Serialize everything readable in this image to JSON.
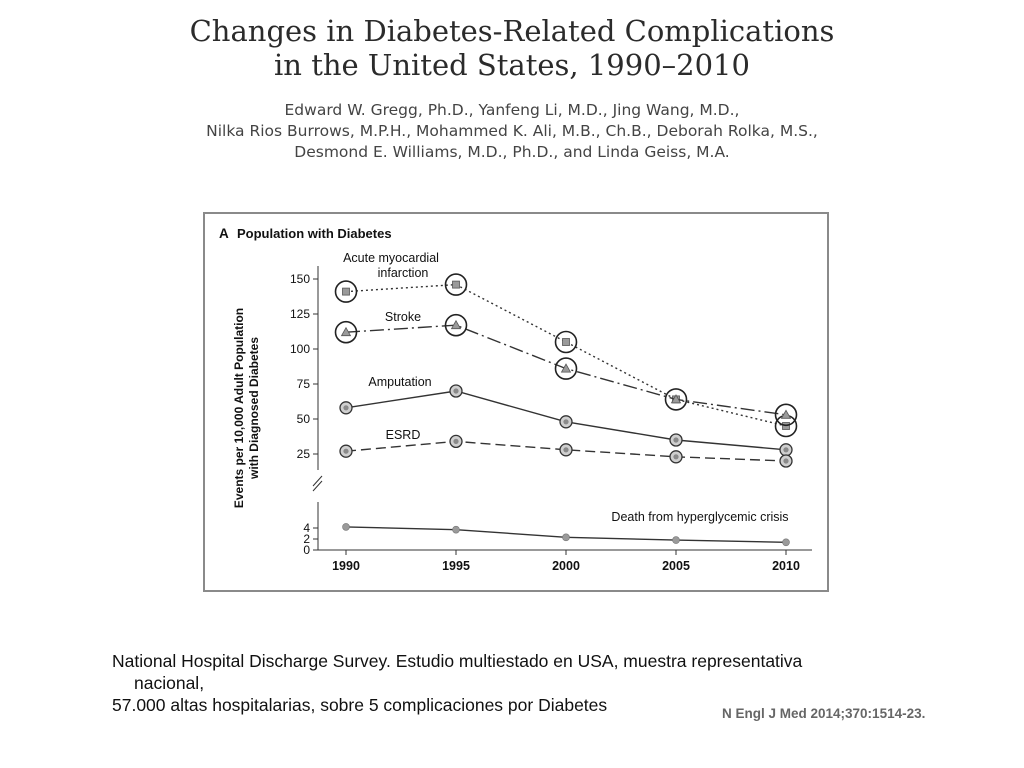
{
  "paper": {
    "title_lines": [
      "Changes in Diabetes-Related Complications",
      "in the United States, 1990–2010"
    ],
    "author_lines": [
      "Edward W. Gregg, Ph.D., Yanfeng Li, M.D., Jing Wang, M.D.,",
      "Nilka Rios Burrows, M.P.H., Mohammed K. Ali, M.B., Ch.B., Deborah Rolka, M.S.,",
      "Desmond E. Williams, M.D., Ph.D., and Linda Geiss, M.A."
    ]
  },
  "footer": {
    "line1": "National Hospital Discharge Survey. Estudio multiestado en USA, muestra representativa",
    "line2": "nacional,",
    "line3": "57.000 altas hospitalarias, sobre 5 complicaciones por Diabetes",
    "citation": "N Engl J Med 2014;370:1514-23."
  },
  "chart_data": {
    "type": "line",
    "panel_letter": "A",
    "title": "Population with Diabetes",
    "ylabel_lines": [
      "Events per 10,000 Adult Population",
      "with Diagnosed Diabetes"
    ],
    "x": [
      1990,
      1995,
      2000,
      2005,
      2010
    ],
    "y_upper_ticks": [
      25,
      50,
      75,
      100,
      125,
      150
    ],
    "y_lower_ticks": [
      0,
      2,
      4
    ],
    "axis_break": true,
    "series": [
      {
        "name": "Acute myocardial infarction",
        "label_lines": [
          "Acute myocardial",
          "infarction"
        ],
        "values": [
          141,
          146,
          105,
          64,
          45
        ],
        "dash": "2,3",
        "marker": "square",
        "circled": [
          true,
          true,
          true,
          true,
          true
        ],
        "panel": "upper"
      },
      {
        "name": "Stroke",
        "label_lines": [
          "Stroke"
        ],
        "values": [
          112,
          117,
          86,
          64,
          53
        ],
        "dash": "14,4,2,4",
        "marker": "triangle",
        "circled": [
          true,
          true,
          true,
          false,
          true
        ],
        "panel": "upper"
      },
      {
        "name": "Amputation",
        "label_lines": [
          "Amputation"
        ],
        "values": [
          58,
          70,
          48,
          35,
          28
        ],
        "dash": "",
        "marker": "circle",
        "circled": [
          false,
          false,
          false,
          false,
          false
        ],
        "panel": "upper"
      },
      {
        "name": "ESRD",
        "label_lines": [
          "ESRD"
        ],
        "values": [
          27,
          34,
          28,
          23,
          20
        ],
        "dash": "10,5",
        "marker": "circle",
        "circled": [
          false,
          false,
          false,
          false,
          false
        ],
        "panel": "upper"
      },
      {
        "name": "Death from hyperglycemic crisis",
        "label_lines": [
          "Death from hyperglycemic crisis"
        ],
        "values": [
          4.2,
          3.7,
          2.3,
          1.8,
          1.4
        ],
        "dash": "",
        "marker": "dot",
        "circled": [
          false,
          false,
          false,
          false,
          false
        ],
        "panel": "lower"
      }
    ],
    "colors": {
      "line": "#333333",
      "marker_fill": "#9a9a9a",
      "border": "#8a8a8a"
    }
  }
}
